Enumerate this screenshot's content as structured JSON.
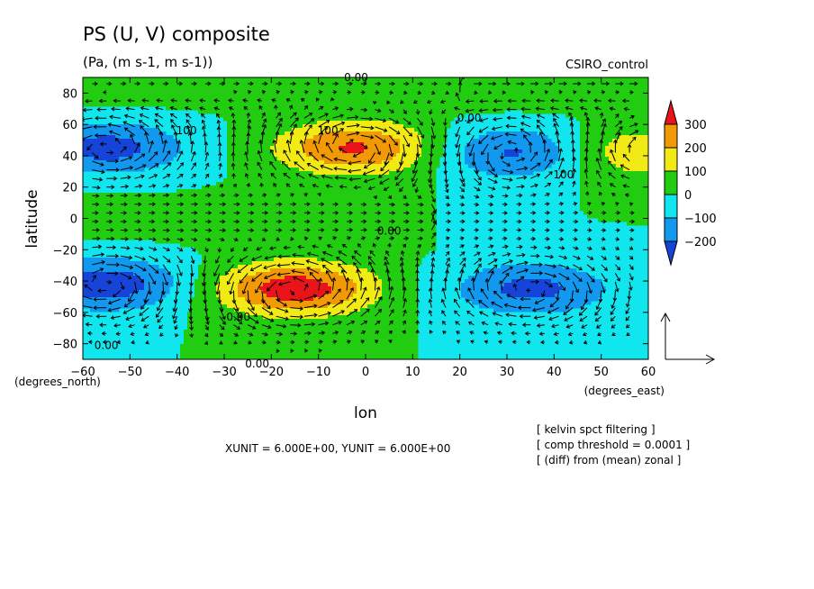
{
  "chart_data": {
    "type": "heatmap",
    "title": "PS (U, V) composite",
    "subtitle": "(Pa, (m s-1, m s-1))",
    "model_label": "CSIRO_control",
    "xlabel": "lon",
    "ylabel": "latitude",
    "x_unit_label": "(degrees_east)",
    "y_unit_label": "(degrees_north)",
    "xlim": [
      -60,
      60
    ],
    "ylim": [
      -90,
      90
    ],
    "x_ticks": [
      "-60",
      "-50",
      "-40",
      "-30",
      "-20",
      "-10",
      "0",
      "10",
      "20",
      "30",
      "40",
      "50",
      "60"
    ],
    "y_ticks": [
      "80",
      "60",
      "40",
      "20",
      "0",
      "-20",
      "-40",
      "-60",
      "-80"
    ],
    "colorbar": {
      "labels": [
        "300",
        "200",
        "100",
        "0",
        "-100",
        "-200"
      ],
      "colors": {
        "gt300": "#e8141a",
        "200_300": "#f29a05",
        "100_200": "#f2ea14",
        "0_100": "#22cc11",
        "m100_0": "#11e6ee",
        "m200_m100": "#1298ee",
        "lt_m200": "#1644d8"
      }
    },
    "contour_labels": [
      {
        "text": "0.00",
        "lon": -2,
        "lat": 90
      },
      {
        "text": "0.00",
        "lon": 22,
        "lat": 64
      },
      {
        "text": "100",
        "lon": -38,
        "lat": 56
      },
      {
        "text": "100",
        "lon": -8,
        "lat": 56
      },
      {
        "text": "100",
        "lon": 42,
        "lat": 28
      },
      {
        "text": "0.00",
        "lon": 5,
        "lat": -8
      },
      {
        "text": "0.00",
        "lon": -27,
        "lat": -63
      },
      {
        "text": "0.00",
        "lon": -55,
        "lat": -81
      },
      {
        "text": "0.00",
        "lon": -23,
        "lat": -93
      }
    ],
    "anomaly_centers": [
      {
        "lon": -2,
        "lat": 45,
        "value": 300
      },
      {
        "lon": -15,
        "lat": -45,
        "value": 350
      },
      {
        "lon": -55,
        "lat": 45,
        "value": -230
      },
      {
        "lon": -55,
        "lat": -42,
        "value": -250
      },
      {
        "lon": 32,
        "lat": 42,
        "value": -220
      },
      {
        "lon": 35,
        "lat": -45,
        "value": -220
      },
      {
        "lon": 57,
        "lat": 42,
        "value": 180
      }
    ],
    "vector_reference": {
      "xunit_text": "XUNIT = 6.000E+00, YUNIT = 6.000E+00"
    },
    "annotations": [
      "[ kelvin spct filtering ]",
      "[ comp threshold = 0.0001 ]",
      "[ (diff) from (mean) zonal ]"
    ]
  }
}
